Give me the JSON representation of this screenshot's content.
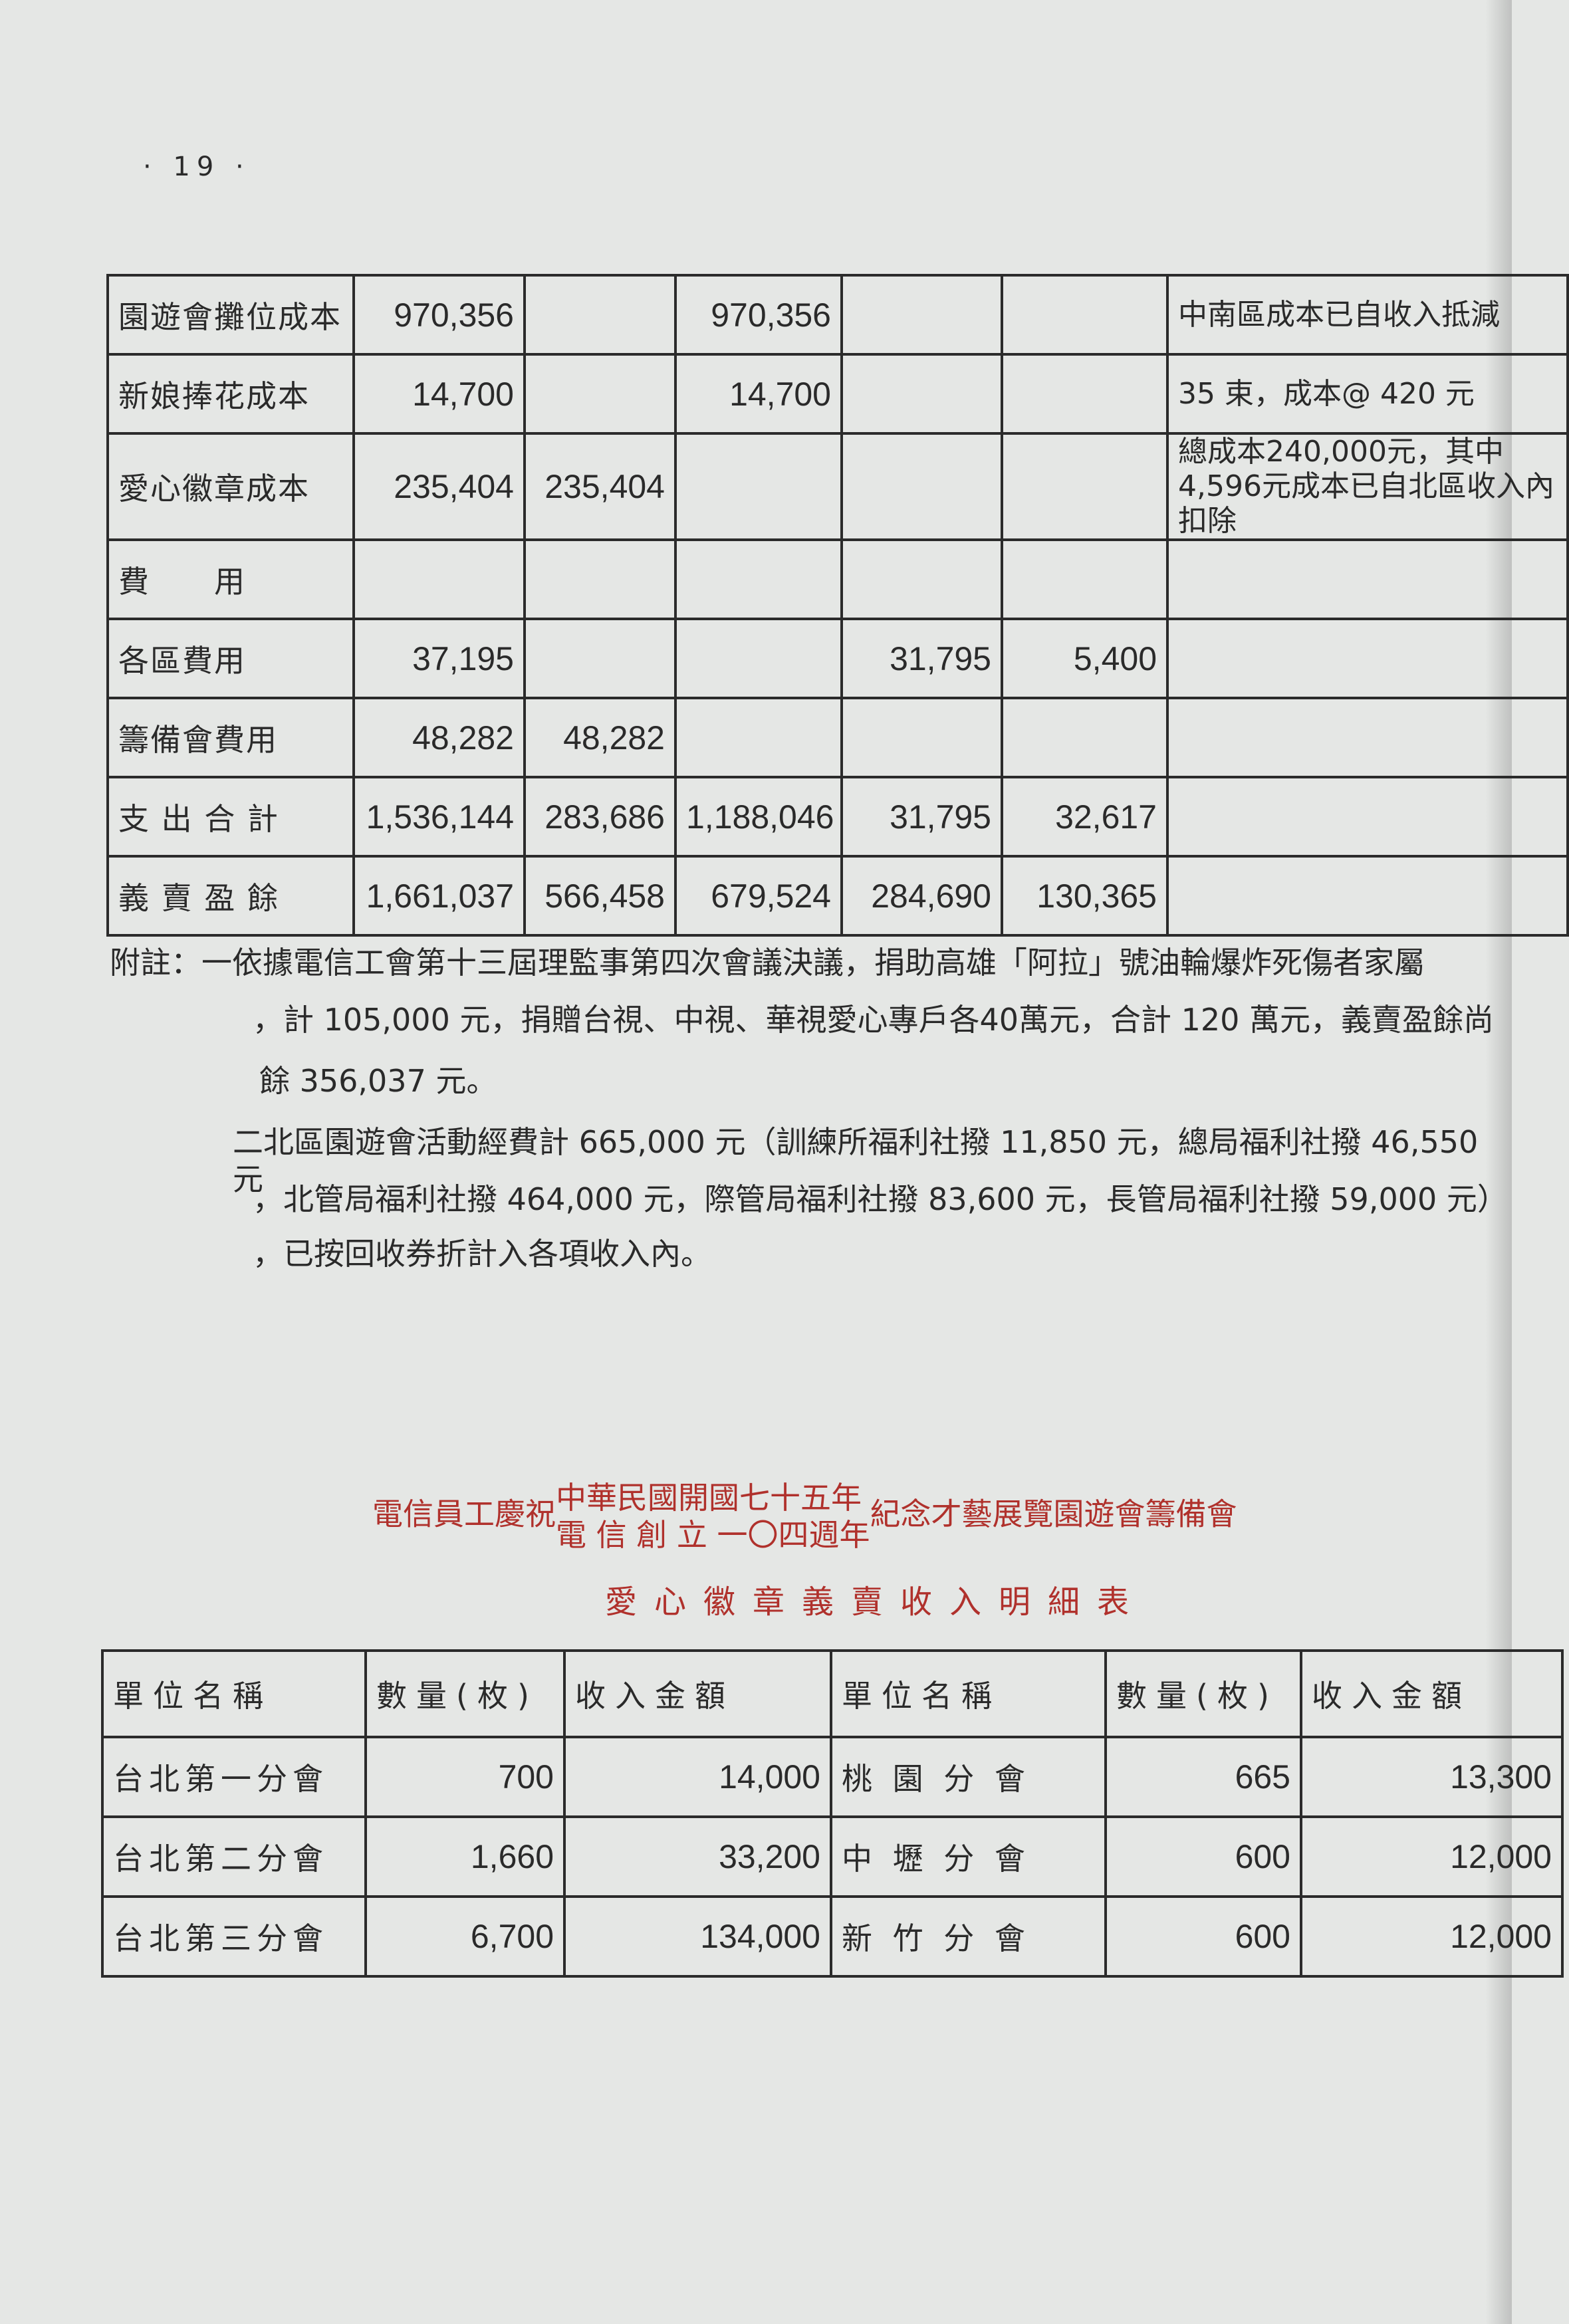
{
  "page_number": "· 19 ·",
  "expense_table": {
    "rows": [
      {
        "label": "園遊會攤位成本",
        "c1": "970,356",
        "c2": "",
        "c3": "970,356",
        "c4": "",
        "c5": "",
        "note": "中南區成本已自收入抵減"
      },
      {
        "label": "新娘捧花成本",
        "c1": "14,700",
        "c2": "",
        "c3": "14,700",
        "c4": "",
        "c5": "",
        "note": "35 束，成本@ 420 元"
      },
      {
        "label": "愛心徽章成本",
        "c1": "235,404",
        "c2": "235,404",
        "c3": "",
        "c4": "",
        "c5": "",
        "note": "總成本240,000元，其中4,596元成本已自北區收入內扣除"
      },
      {
        "label": "費　　用",
        "c1": "",
        "c2": "",
        "c3": "",
        "c4": "",
        "c5": "",
        "note": ""
      },
      {
        "label": "各區費用",
        "c1": "37,195",
        "c2": "",
        "c3": "",
        "c4": "31,795",
        "c5": "5,400",
        "note": ""
      },
      {
        "label": "籌備會費用",
        "c1": "48,282",
        "c2": "48,282",
        "c3": "",
        "c4": "",
        "c5": "",
        "note": ""
      },
      {
        "label": "支 出 合 計",
        "c1": "1,536,144",
        "c2": "283,686",
        "c3": "1,188,046",
        "c4": "31,795",
        "c5": "32,617",
        "note": ""
      },
      {
        "label": "義 賣 盈 餘",
        "c1": "1,661,037",
        "c2": "566,458",
        "c3": "679,524",
        "c4": "284,690",
        "c5": "130,365",
        "note": ""
      }
    ]
  },
  "notes": [
    "附註：一依據電信工會第十三屆理監事第四次會議決議，捐助高雄「阿拉」號油輪爆炸死傷者家屬",
    "，計 105,000 元，捐贈台視、中視、華視愛心專戶各40萬元，合計 120 萬元，義賣盈餘尚",
    "餘 356,037 元。",
    "二北區園遊會活動經費計 665,000 元（訓練所福利社撥 11,850 元，總局福利社撥 46,550 元",
    "，北管局福利社撥 464,000 元，際管局福利社撥 83,600 元，長管局福利社撥 59,000 元）",
    "，已按回收券折計入各項收入內。"
  ],
  "title": {
    "prefix": "電信員工慶祝",
    "line_a": "中華民國開國七十五年",
    "line_b": "電 信 創 立 一〇四週年",
    "suffix": "紀念才藝展覽園遊會籌備會",
    "subtitle": "愛心徽章義賣收入明細表"
  },
  "badge_table": {
    "headers": [
      "單位名稱",
      "數量(枚)",
      "收入金額",
      "單位名稱",
      "數量(枚)",
      "收入金額"
    ],
    "rows": [
      [
        "台北第一分會",
        "700",
        "14,000",
        "桃 園 分 會",
        "665",
        "13,300"
      ],
      [
        "台北第二分會",
        "1,660",
        "33,200",
        "中 壢 分 會",
        "600",
        "12,000"
      ],
      [
        "台北第三分會",
        "6,700",
        "134,000",
        "新 竹 分 會",
        "600",
        "12,000"
      ]
    ]
  }
}
